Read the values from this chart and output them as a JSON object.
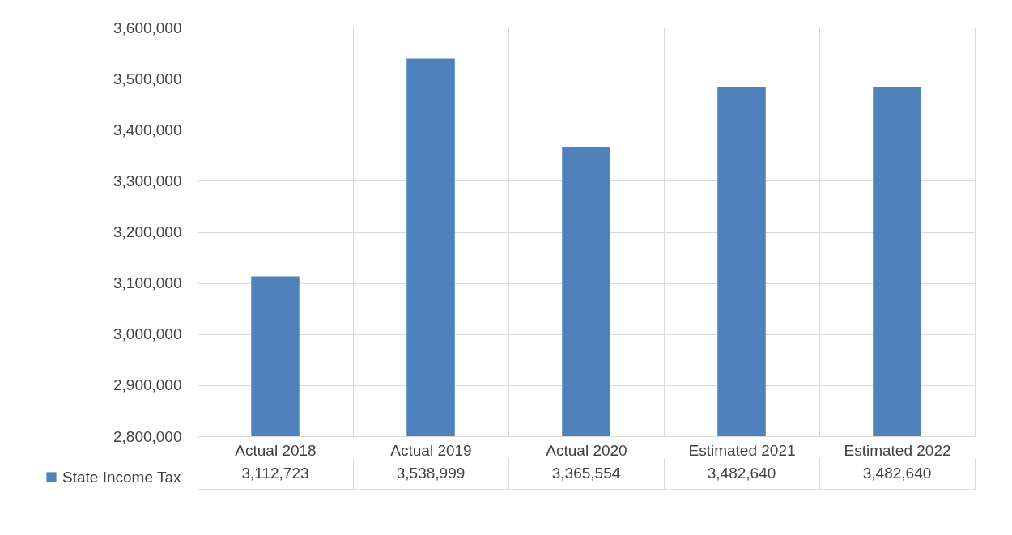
{
  "chart_data": {
    "type": "bar",
    "categories": [
      "Actual 2018",
      "Actual 2019",
      "Actual 2020",
      "Estimated 2021",
      "Estimated 2022"
    ],
    "series": [
      {
        "name": "State Income Tax",
        "color": "#4f81bd",
        "values": [
          3112723,
          3538999,
          3365554,
          3482640,
          3482640
        ],
        "value_labels": [
          "3,112,723",
          "3,538,999",
          "3,365,554",
          "3,482,640",
          "3,482,640"
        ]
      }
    ],
    "ylim": [
      2800000,
      3600000
    ],
    "yticks": [
      {
        "value": 2800000,
        "label": "2,800,000"
      },
      {
        "value": 2900000,
        "label": "2,900,000"
      },
      {
        "value": 3000000,
        "label": "3,000,000"
      },
      {
        "value": 3100000,
        "label": "3,100,000"
      },
      {
        "value": 3200000,
        "label": "3,200,000"
      },
      {
        "value": 3300000,
        "label": "3,300,000"
      },
      {
        "value": 3400000,
        "label": "3,400,000"
      },
      {
        "value": 3500000,
        "label": "3,500,000"
      },
      {
        "value": 3600000,
        "label": "3,600,000"
      }
    ],
    "grid": "y",
    "legend": "bottom"
  }
}
